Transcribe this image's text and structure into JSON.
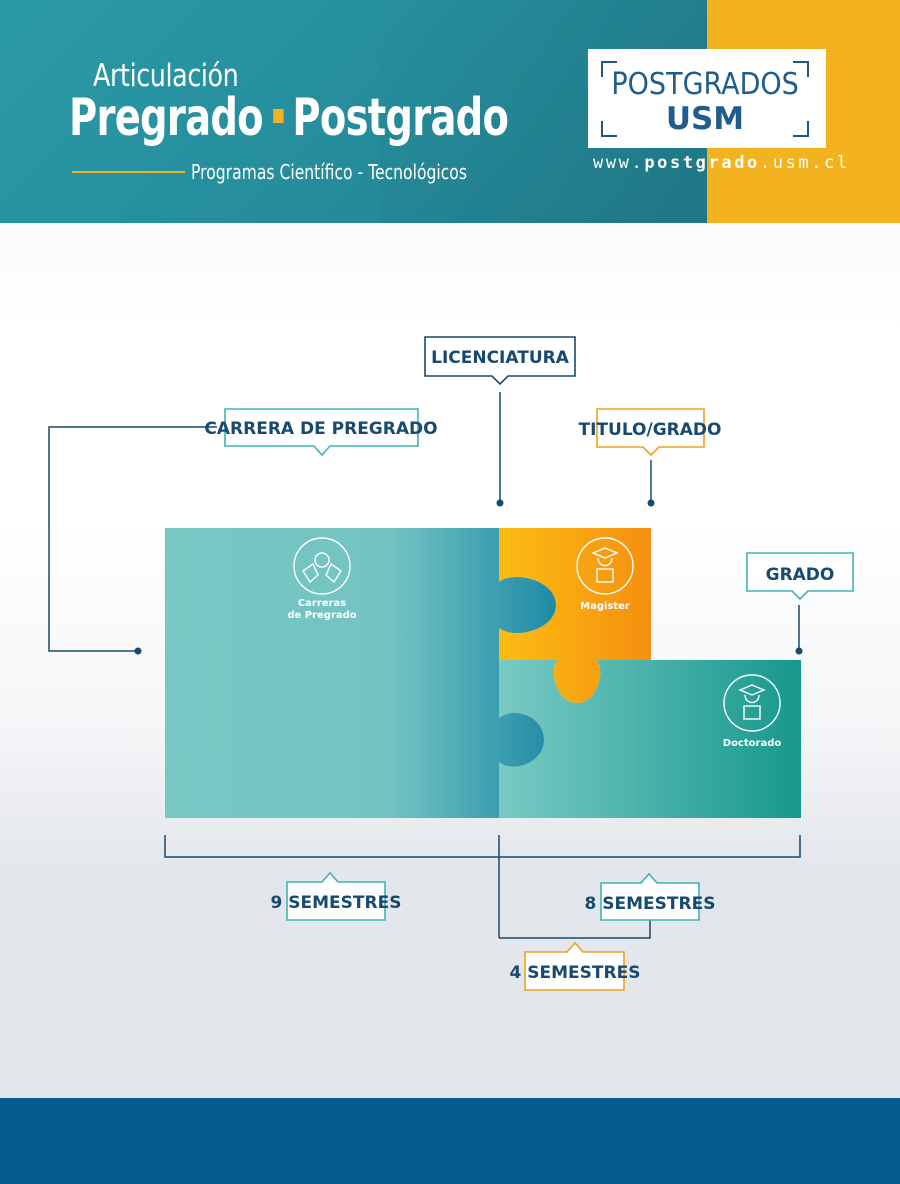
{
  "header": {
    "title_top": "Articulación",
    "title_left": "Pregrado",
    "title_right": "Postgrado",
    "subtitle": "Programas  Científico - Tecnológicos"
  },
  "logo": {
    "line1": "POSTGRADOS",
    "line2": "USM",
    "url_prefix": "www.",
    "url_bold": "postgrado",
    "url_suffix": ".usm.cl"
  },
  "diagram": {
    "callouts": {
      "licenciatura": "LICENCIATURA",
      "carrera_pregrado": "CARRERA DE PREGRADO",
      "titulo_grado": "TITULO/GRADO",
      "grado": "GRADO"
    },
    "pieces": {
      "pregrado_l1": "Carreras",
      "pregrado_l2": "de Pregrado",
      "magister": "Magister",
      "doctorado": "Doctorado"
    },
    "durations": {
      "pregrado": "9 SEMESTRES",
      "doctorado": "8 SEMESTRES",
      "magister": "4 SEMESTRES"
    }
  },
  "colors": {
    "teal_dark": "#227f90",
    "accent_yellow": "#f3b320",
    "navy": "#174a6e",
    "teal_line": "#3fb3b1",
    "orange": "#f0a020",
    "footer_blue": "#055a8e"
  }
}
